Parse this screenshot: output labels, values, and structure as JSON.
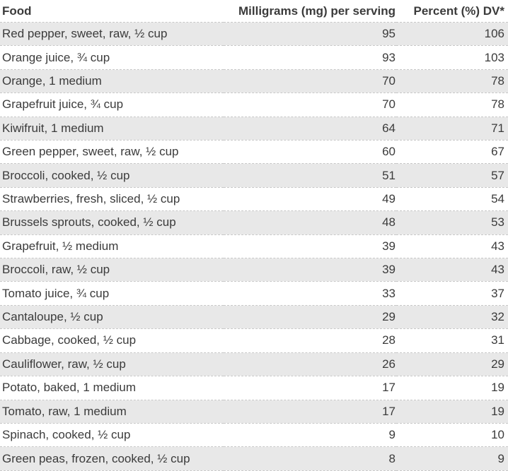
{
  "table": {
    "header": [
      "Food",
      "Milligrams (mg) per serving",
      "Percent (%) DV*"
    ],
    "rows": [
      [
        "Red pepper, sweet, raw, ½ cup",
        "95",
        "106"
      ],
      [
        "Orange juice, ¾ cup",
        "93",
        "103"
      ],
      [
        "Orange, 1 medium",
        "70",
        "78"
      ],
      [
        "Grapefruit juice, ¾ cup",
        "70",
        "78"
      ],
      [
        "Kiwifruit, 1 medium",
        "64",
        "71"
      ],
      [
        "Green pepper, sweet, raw, ½ cup",
        "60",
        "67"
      ],
      [
        "Broccoli, cooked, ½ cup",
        "51",
        "57"
      ],
      [
        "Strawberries, fresh, sliced, ½ cup",
        "49",
        "54"
      ],
      [
        "Brussels sprouts, cooked, ½ cup",
        "48",
        "53"
      ],
      [
        "Grapefruit, ½ medium",
        "39",
        "43"
      ],
      [
        "Broccoli, raw, ½ cup",
        "39",
        "43"
      ],
      [
        "Tomato juice, ¾ cup",
        "33",
        "37"
      ],
      [
        "Cantaloupe, ½ cup",
        "29",
        "32"
      ],
      [
        "Cabbage, cooked, ½ cup",
        "28",
        "31"
      ],
      [
        "Cauliflower, raw, ½ cup",
        "26",
        "29"
      ],
      [
        "Potato, baked, 1 medium",
        "17",
        "19"
      ],
      [
        "Tomato, raw, 1 medium",
        "17",
        "19"
      ],
      [
        "Spinach, cooked, ½ cup",
        "9",
        "10"
      ],
      [
        "Green peas, frozen, cooked, ½ cup",
        "8",
        "9"
      ]
    ]
  },
  "chart_data": {
    "type": "table",
    "columns": [
      "Food",
      "Milligrams (mg) per serving",
      "Percent (%) DV*"
    ],
    "rows": [
      {
        "food": "Red pepper, sweet, raw, ½ cup",
        "mg_per_serving": 95,
        "percent_dv": 106
      },
      {
        "food": "Orange juice, ¾ cup",
        "mg_per_serving": 93,
        "percent_dv": 103
      },
      {
        "food": "Orange, 1 medium",
        "mg_per_serving": 70,
        "percent_dv": 78
      },
      {
        "food": "Grapefruit juice, ¾ cup",
        "mg_per_serving": 70,
        "percent_dv": 78
      },
      {
        "food": "Kiwifruit, 1 medium",
        "mg_per_serving": 64,
        "percent_dv": 71
      },
      {
        "food": "Green pepper, sweet, raw, ½ cup",
        "mg_per_serving": 60,
        "percent_dv": 67
      },
      {
        "food": "Broccoli, cooked, ½ cup",
        "mg_per_serving": 51,
        "percent_dv": 57
      },
      {
        "food": "Strawberries, fresh, sliced, ½ cup",
        "mg_per_serving": 49,
        "percent_dv": 54
      },
      {
        "food": "Brussels sprouts, cooked, ½ cup",
        "mg_per_serving": 48,
        "percent_dv": 53
      },
      {
        "food": "Grapefruit, ½ medium",
        "mg_per_serving": 39,
        "percent_dv": 43
      },
      {
        "food": "Broccoli, raw, ½ cup",
        "mg_per_serving": 39,
        "percent_dv": 43
      },
      {
        "food": "Tomato juice, ¾ cup",
        "mg_per_serving": 33,
        "percent_dv": 37
      },
      {
        "food": "Cantaloupe, ½ cup",
        "mg_per_serving": 29,
        "percent_dv": 32
      },
      {
        "food": "Cabbage, cooked, ½ cup",
        "mg_per_serving": 28,
        "percent_dv": 31
      },
      {
        "food": "Cauliflower, raw, ½ cup",
        "mg_per_serving": 26,
        "percent_dv": 29
      },
      {
        "food": "Potato, baked, 1 medium",
        "mg_per_serving": 17,
        "percent_dv": 19
      },
      {
        "food": "Tomato, raw, 1 medium",
        "mg_per_serving": 17,
        "percent_dv": 19
      },
      {
        "food": "Spinach, cooked, ½ cup",
        "mg_per_serving": 9,
        "percent_dv": 10
      },
      {
        "food": "Green peas, frozen, cooked, ½ cup",
        "mg_per_serving": 8,
        "percent_dv": 9
      }
    ]
  },
  "colors": {
    "alt_row_bg": "#e8e8e8",
    "row_bg": "#ffffff",
    "text": "#3b3b3b",
    "divider": "#c8c8c8"
  }
}
